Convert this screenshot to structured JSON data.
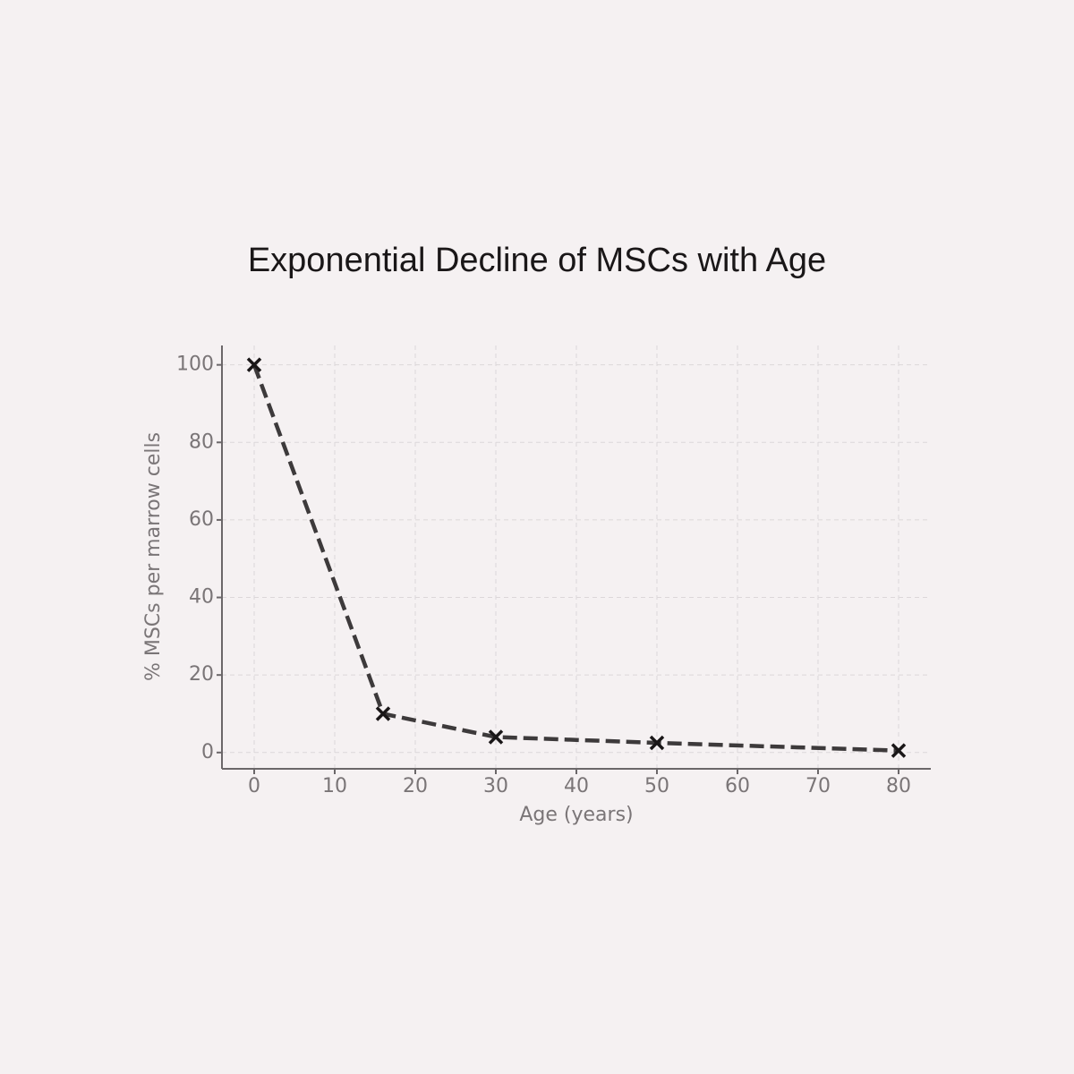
{
  "chart_data": {
    "type": "line",
    "title": "Exponential Decline of MSCs with Age",
    "x_label": "Age (years)",
    "y_label": "% MSCs per marrow cells",
    "x": [
      0,
      16,
      30,
      50,
      80
    ],
    "values": [
      100,
      10,
      4,
      2.5,
      0.5
    ],
    "color": "#3d3a3b",
    "xlim": [
      -4,
      84
    ],
    "ylim": [
      -4.2,
      105
    ],
    "xticks": [
      0,
      10,
      20,
      30,
      40,
      50,
      60,
      70,
      80
    ],
    "yticks": [
      0,
      20,
      40,
      60,
      80,
      100
    ],
    "grid": true,
    "line_style": "dashed",
    "marker": "x"
  }
}
